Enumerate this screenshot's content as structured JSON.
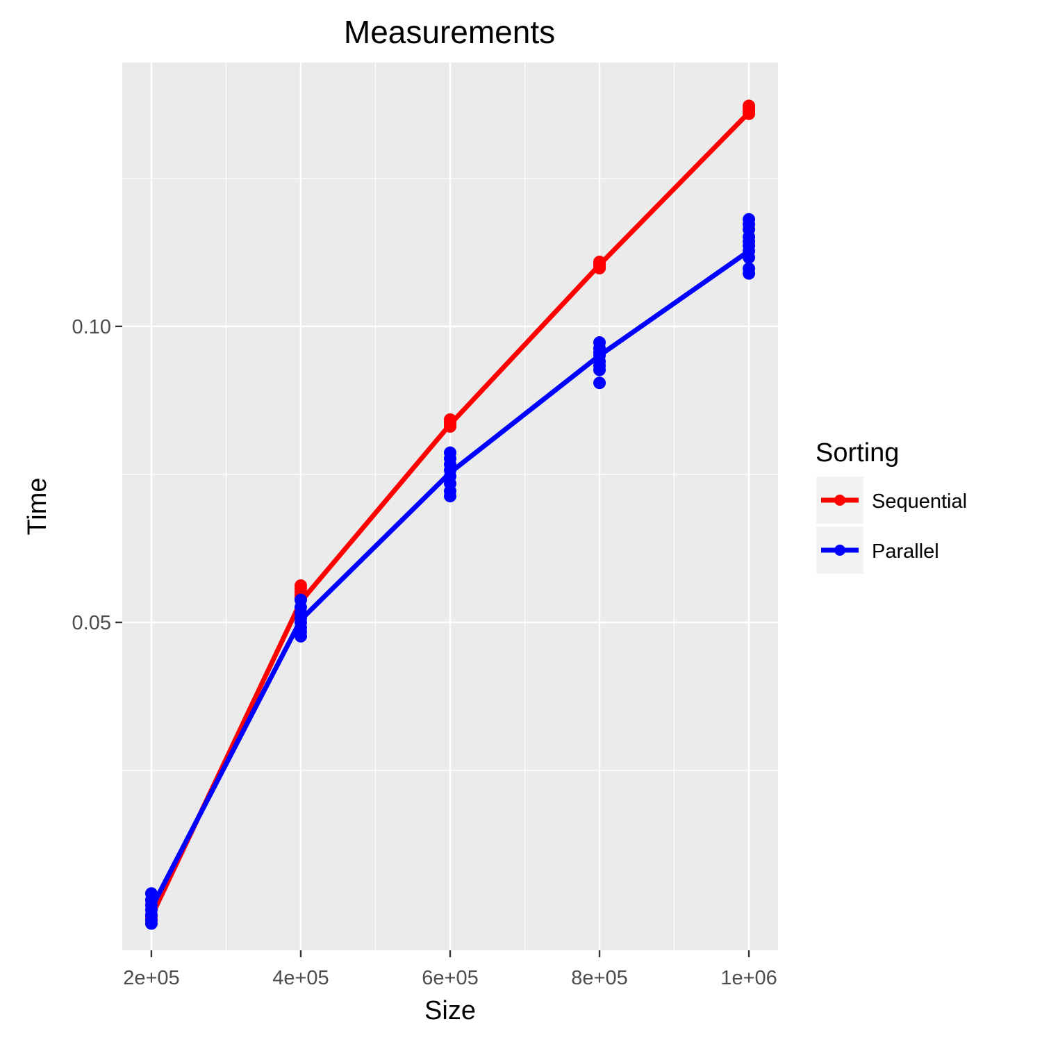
{
  "chart_data": {
    "type": "line",
    "title": "Measurements",
    "xlabel": "Size",
    "ylabel": "Time",
    "x_ticks": [
      "2e+05",
      "4e+05",
      "6e+05",
      "8e+05",
      "1e+06"
    ],
    "x_tick_values": [
      200000,
      400000,
      600000,
      800000,
      1000000
    ],
    "y_ticks": [
      "0.05",
      "0.10"
    ],
    "y_tick_values": [
      0.05,
      0.1
    ],
    "y_scale": "log",
    "xlim": [
      161000,
      1039000
    ],
    "ylim": [
      0.0232,
      0.1855
    ],
    "grid": true,
    "legend": {
      "title": "Sorting",
      "position": "right"
    },
    "series": [
      {
        "name": "Sequential",
        "color": "#ff0000",
        "line": [
          {
            "x": 200000,
            "y": 0.0251
          },
          {
            "x": 400000,
            "y": 0.0525
          },
          {
            "x": 600000,
            "y": 0.0795
          },
          {
            "x": 800000,
            "y": 0.1155
          },
          {
            "x": 1000000,
            "y": 0.165
          }
        ],
        "points": [
          {
            "x": 200000,
            "values": [
              0.0251,
              0.0249
            ]
          },
          {
            "x": 400000,
            "values": [
              0.0545,
              0.0541,
              0.0537,
              0.0533,
              0.0529
            ]
          },
          {
            "x": 600000,
            "values": [
              0.0804,
              0.08,
              0.0797,
              0.0794,
              0.0791
            ]
          },
          {
            "x": 800000,
            "values": [
              0.1163,
              0.1159,
              0.1155,
              0.115,
              0.1146
            ]
          },
          {
            "x": 1000000,
            "values": [
              0.1676,
              0.1668,
              0.166,
              0.1652,
              0.1645
            ]
          }
        ]
      },
      {
        "name": "Parallel",
        "color": "#0000ff",
        "line": [
          {
            "x": 200000,
            "y": 0.0256
          },
          {
            "x": 400000,
            "y": 0.0503
          },
          {
            "x": 600000,
            "y": 0.071
          },
          {
            "x": 800000,
            "y": 0.0934
          },
          {
            "x": 1000000,
            "y": 0.1193
          }
        ],
        "points": [
          {
            "x": 200000,
            "values": [
              0.0265,
              0.0261,
              0.0258,
              0.0255,
              0.0252,
              0.0249,
              0.0247
            ]
          },
          {
            "x": 400000,
            "values": [
              0.0527,
              0.0518,
              0.0511,
              0.0505,
              0.05,
              0.0494,
              0.0489,
              0.0484
            ]
          },
          {
            "x": 600000,
            "values": [
              0.0744,
              0.0734,
              0.0724,
              0.0714,
              0.0704,
              0.0692,
              0.068,
              0.0672
            ]
          },
          {
            "x": 800000,
            "values": [
              0.0963,
              0.095,
              0.0941,
              0.0934,
              0.0921,
              0.0912,
              0.0903,
              0.0876
            ]
          },
          {
            "x": 1000000,
            "values": [
              0.1285,
              0.127,
              0.1255,
              0.1233,
              0.122,
              0.1208,
              0.1193,
              0.1175,
              0.1145,
              0.1132
            ]
          }
        ]
      }
    ]
  }
}
